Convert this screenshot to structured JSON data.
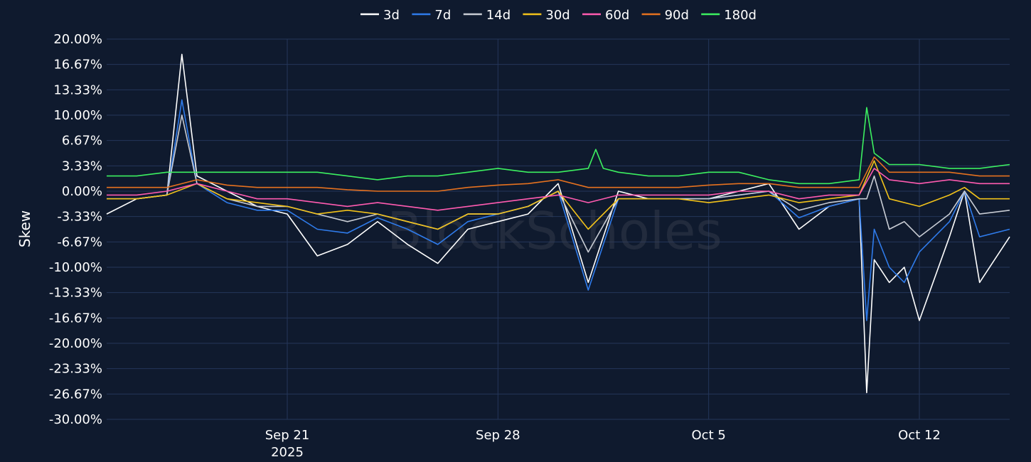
{
  "chart_data": {
    "type": "line",
    "ylabel": "Skew",
    "watermark": "BlockScholes",
    "x_range": [
      "2025-09-15",
      "2025-10-15"
    ],
    "ylim": [
      -30,
      20
    ],
    "y_ticks": [
      20,
      16.67,
      13.33,
      10,
      6.67,
      3.33,
      0,
      -3.33,
      -6.67,
      -10,
      -13.33,
      -16.67,
      -20,
      -23.33,
      -26.67,
      -30
    ],
    "y_tick_labels": [
      "20.00%",
      "16.67%",
      "13.33%",
      "10.00%",
      "6.67%",
      "3.33%",
      "0.00%",
      "-3.33%",
      "-6.67%",
      "-10.00%",
      "-13.33%",
      "-16.67%",
      "-20.00%",
      "-23.33%",
      "-26.67%",
      "-30.00%"
    ],
    "x_ticks": [
      {
        "x": "2025-09-21",
        "label": "Sep 21",
        "sublabel": "2025"
      },
      {
        "x": "2025-09-28",
        "label": "Sep 28",
        "sublabel": ""
      },
      {
        "x": "2025-10-05",
        "label": "Oct 5",
        "sublabel": ""
      },
      {
        "x": "2025-10-12",
        "label": "Oct 12",
        "sublabel": ""
      }
    ],
    "grid": true,
    "legend_position": "top-center",
    "series": [
      {
        "name": "3d",
        "color": "#ffffff",
        "x": [
          "2025-09-15",
          "2025-09-16",
          "2025-09-17",
          "2025-09-17 12:00",
          "2025-09-18",
          "2025-09-19",
          "2025-09-20",
          "2025-09-21",
          "2025-09-22",
          "2025-09-23",
          "2025-09-24",
          "2025-09-25",
          "2025-09-26",
          "2025-09-27",
          "2025-09-28",
          "2025-09-29",
          "2025-09-30",
          "2025-10-01",
          "2025-10-02",
          "2025-10-03",
          "2025-10-04",
          "2025-10-05",
          "2025-10-06",
          "2025-10-07",
          "2025-10-08",
          "2025-10-09",
          "2025-10-10",
          "2025-10-10 06:00",
          "2025-10-10 12:00",
          "2025-10-11",
          "2025-10-11 12:00",
          "2025-10-12",
          "2025-10-13",
          "2025-10-13 12:00",
          "2025-10-14",
          "2025-10-15"
        ],
        "y": [
          -3,
          -1,
          -0.5,
          18,
          2,
          0,
          -2,
          -3,
          -8.5,
          -7,
          -4,
          -7,
          -9.5,
          -5,
          -4,
          -3,
          1,
          -12,
          0,
          -1,
          -1,
          -1,
          0,
          1,
          -5,
          -2,
          -1,
          -26.5,
          -9,
          -12,
          -10,
          -17,
          -6,
          0,
          -12,
          -6
        ]
      },
      {
        "name": "7d",
        "color": "#2f7bea",
        "x": [
          "2025-09-15",
          "2025-09-16",
          "2025-09-17",
          "2025-09-17 12:00",
          "2025-09-18",
          "2025-09-19",
          "2025-09-20",
          "2025-09-21",
          "2025-09-22",
          "2025-09-23",
          "2025-09-24",
          "2025-09-25",
          "2025-09-26",
          "2025-09-27",
          "2025-09-28",
          "2025-09-29",
          "2025-09-30",
          "2025-10-01",
          "2025-10-02",
          "2025-10-03",
          "2025-10-04",
          "2025-10-05",
          "2025-10-06",
          "2025-10-07",
          "2025-10-08",
          "2025-10-09",
          "2025-10-10",
          "2025-10-10 06:00",
          "2025-10-10 12:00",
          "2025-10-11",
          "2025-10-11 12:00",
          "2025-10-12",
          "2025-10-13",
          "2025-10-13 12:00",
          "2025-10-14",
          "2025-10-15"
        ],
        "y": [
          -1,
          -1,
          -0.5,
          12,
          1,
          -1.5,
          -2.5,
          -2.5,
          -5,
          -5.5,
          -3.5,
          -5,
          -7,
          -4,
          -3,
          -2,
          0,
          -13,
          -1,
          -1,
          -1,
          -1,
          -0.5,
          0,
          -3.5,
          -2,
          -1,
          -17,
          -5,
          -10,
          -12,
          -8,
          -4,
          0,
          -6,
          -5
        ]
      },
      {
        "name": "14d",
        "color": "#c8ccd4",
        "x": [
          "2025-09-15",
          "2025-09-16",
          "2025-09-17",
          "2025-09-17 12:00",
          "2025-09-18",
          "2025-09-19",
          "2025-09-20",
          "2025-09-21",
          "2025-09-22",
          "2025-09-23",
          "2025-09-24",
          "2025-09-25",
          "2025-09-26",
          "2025-09-27",
          "2025-09-28",
          "2025-09-29",
          "2025-09-30",
          "2025-10-01",
          "2025-10-02",
          "2025-10-03",
          "2025-10-04",
          "2025-10-05",
          "2025-10-06",
          "2025-10-07",
          "2025-10-08",
          "2025-10-09",
          "2025-10-10",
          "2025-10-10 06:00",
          "2025-10-10 12:00",
          "2025-10-11",
          "2025-10-11 12:00",
          "2025-10-12",
          "2025-10-13",
          "2025-10-13 12:00",
          "2025-10-14",
          "2025-10-15"
        ],
        "y": [
          -1,
          -1,
          -0.5,
          10,
          1,
          -1,
          -2,
          -2,
          -3,
          -4,
          -3,
          -4,
          -5,
          -3,
          -3,
          -2,
          0,
          -8,
          -1,
          -1,
          -1,
          -1,
          -0.5,
          0,
          -2.5,
          -1.5,
          -1,
          -1,
          2,
          -5,
          -4,
          -6,
          -3,
          0,
          -3,
          -2.5
        ]
      },
      {
        "name": "30d",
        "color": "#f2c21a",
        "x": [
          "2025-09-15",
          "2025-09-16",
          "2025-09-17",
          "2025-09-18",
          "2025-09-19",
          "2025-09-20",
          "2025-09-21",
          "2025-09-22",
          "2025-09-23",
          "2025-09-24",
          "2025-09-25",
          "2025-09-26",
          "2025-09-27",
          "2025-09-28",
          "2025-09-29",
          "2025-09-30",
          "2025-10-01",
          "2025-10-02",
          "2025-10-03",
          "2025-10-04",
          "2025-10-05",
          "2025-10-06",
          "2025-10-07",
          "2025-10-08",
          "2025-10-09",
          "2025-10-10",
          "2025-10-10 12:00",
          "2025-10-11",
          "2025-10-12",
          "2025-10-13",
          "2025-10-13 12:00",
          "2025-10-14",
          "2025-10-15"
        ],
        "y": [
          -1,
          -1,
          -0.5,
          1,
          -1,
          -1.5,
          -2,
          -3,
          -2.5,
          -3,
          -4,
          -5,
          -3,
          -3,
          -2,
          0,
          -5,
          -1,
          -1,
          -1,
          -1.5,
          -1,
          -0.5,
          -1.5,
          -1,
          -0.5,
          4,
          -1,
          -2,
          -0.5,
          0.5,
          -1,
          -1
        ]
      },
      {
        "name": "60d",
        "color": "#ff5bb0",
        "x": [
          "2025-09-15",
          "2025-09-16",
          "2025-09-17",
          "2025-09-18",
          "2025-09-19",
          "2025-09-20",
          "2025-09-21",
          "2025-09-22",
          "2025-09-23",
          "2025-09-24",
          "2025-09-25",
          "2025-09-26",
          "2025-09-27",
          "2025-09-28",
          "2025-09-29",
          "2025-09-30",
          "2025-10-01",
          "2025-10-02",
          "2025-10-03",
          "2025-10-04",
          "2025-10-05",
          "2025-10-06",
          "2025-10-07",
          "2025-10-08",
          "2025-10-09",
          "2025-10-10",
          "2025-10-10 12:00",
          "2025-10-11",
          "2025-10-12",
          "2025-10-13",
          "2025-10-14",
          "2025-10-15"
        ],
        "y": [
          -0.5,
          -0.5,
          0,
          1,
          0,
          -1,
          -1,
          -1.5,
          -2,
          -1.5,
          -2,
          -2.5,
          -2,
          -1.5,
          -1,
          -0.5,
          -1.5,
          -0.5,
          -0.5,
          -0.5,
          -0.5,
          0,
          0,
          -1,
          -0.5,
          -0.5,
          3,
          1.5,
          1,
          1.5,
          1,
          1
        ]
      },
      {
        "name": "90d",
        "color": "#e5711f",
        "x": [
          "2025-09-15",
          "2025-09-16",
          "2025-09-17",
          "2025-09-18",
          "2025-09-19",
          "2025-09-20",
          "2025-09-21",
          "2025-09-22",
          "2025-09-23",
          "2025-09-24",
          "2025-09-25",
          "2025-09-26",
          "2025-09-27",
          "2025-09-28",
          "2025-09-29",
          "2025-09-30",
          "2025-10-01",
          "2025-10-02",
          "2025-10-03",
          "2025-10-04",
          "2025-10-05",
          "2025-10-06",
          "2025-10-07",
          "2025-10-08",
          "2025-10-09",
          "2025-10-10",
          "2025-10-10 12:00",
          "2025-10-11",
          "2025-10-12",
          "2025-10-13",
          "2025-10-14",
          "2025-10-15"
        ],
        "y": [
          0.5,
          0.5,
          0.5,
          1.5,
          0.8,
          0.5,
          0.5,
          0.5,
          0.2,
          0,
          0,
          0,
          0.5,
          0.8,
          1,
          1.5,
          0.5,
          0.5,
          0.5,
          0.5,
          0.8,
          1,
          1,
          0.5,
          0.5,
          0.5,
          4.5,
          2.5,
          2.5,
          2.5,
          2,
          2
        ]
      },
      {
        "name": "180d",
        "color": "#3cf060",
        "x": [
          "2025-09-15",
          "2025-09-16",
          "2025-09-17",
          "2025-09-18",
          "2025-09-19",
          "2025-09-20",
          "2025-09-21",
          "2025-09-22",
          "2025-09-23",
          "2025-09-24",
          "2025-09-25",
          "2025-09-26",
          "2025-09-27",
          "2025-09-28",
          "2025-09-29",
          "2025-09-30",
          "2025-10-01",
          "2025-10-01 06:00",
          "2025-10-01 12:00",
          "2025-10-02",
          "2025-10-03",
          "2025-10-04",
          "2025-10-05",
          "2025-10-06",
          "2025-10-07",
          "2025-10-08",
          "2025-10-09",
          "2025-10-10",
          "2025-10-10 06:00",
          "2025-10-10 12:00",
          "2025-10-11",
          "2025-10-12",
          "2025-10-13",
          "2025-10-14",
          "2025-10-15"
        ],
        "y": [
          2,
          2,
          2.5,
          2.5,
          2.5,
          2.5,
          2.5,
          2.5,
          2,
          1.5,
          2,
          2,
          2.5,
          3,
          2.5,
          2.5,
          3,
          5.5,
          3,
          2.5,
          2,
          2,
          2.5,
          2.5,
          1.5,
          1,
          1,
          1.5,
          11,
          5,
          3.5,
          3.5,
          3,
          3,
          3.5
        ]
      }
    ]
  }
}
